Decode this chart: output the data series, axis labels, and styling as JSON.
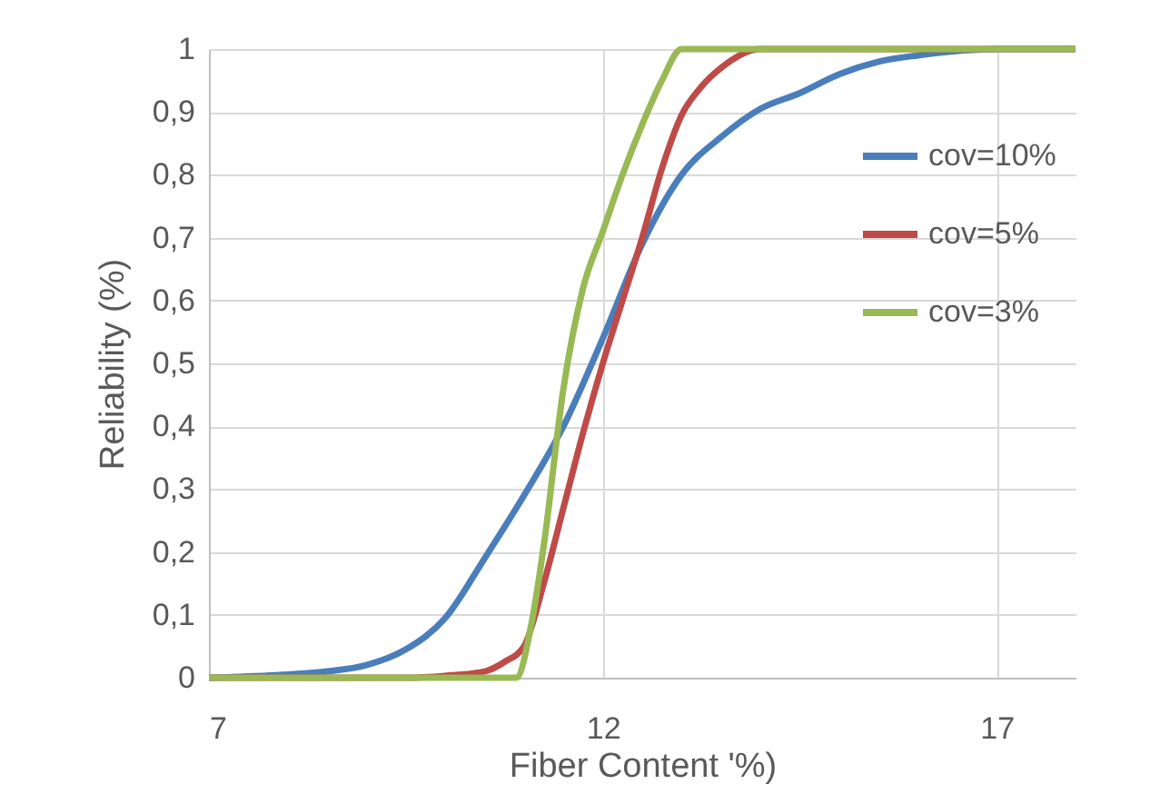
{
  "chart_data": {
    "type": "line",
    "xlabel": "Fiber Content '%)",
    "ylabel": "Reliability (%)",
    "xlim": [
      7,
      18
    ],
    "xticks": [
      7,
      12,
      17
    ],
    "ylim": [
      0,
      1
    ],
    "yticks": [
      0,
      {
        "value": 0.1,
        "label": "0,1"
      },
      {
        "value": 0.2,
        "label": "0,2"
      },
      {
        "value": 0.3,
        "label": "0,3"
      },
      {
        "value": 0.4,
        "label": "0,4"
      },
      {
        "value": 0.5,
        "label": "0,5"
      },
      {
        "value": 0.6,
        "label": "0,6"
      },
      {
        "value": 0.7,
        "label": "0,7"
      },
      {
        "value": 0.8,
        "label": "0,8"
      },
      {
        "value": 0.9,
        "label": "0,9"
      },
      1
    ],
    "grid": true,
    "legend": "top right",
    "series": [
      {
        "name": "cov=10%",
        "color": "#4a7ebb",
        "x": [
          7,
          8,
          8.5,
          9,
          9.5,
          10,
          10.5,
          11,
          11.5,
          12,
          12.5,
          13,
          13.5,
          14,
          14.5,
          15,
          15.5,
          16,
          17,
          18
        ],
        "values": [
          0,
          0.005,
          0.01,
          0.02,
          0.045,
          0.095,
          0.19,
          0.29,
          0.4,
          0.54,
          0.69,
          0.8,
          0.86,
          0.905,
          0.93,
          0.96,
          0.98,
          0.99,
          1,
          1
        ]
      },
      {
        "name": "cov=5%",
        "color": "#be4b48",
        "x": [
          7,
          9,
          9.5,
          10,
          10.5,
          10.75,
          11,
          11.25,
          11.5,
          11.75,
          12,
          12.25,
          12.5,
          12.75,
          13,
          13.25,
          13.5,
          14,
          18
        ],
        "values": [
          0,
          0,
          0,
          0.003,
          0.01,
          0.025,
          0.05,
          0.15,
          0.27,
          0.39,
          0.5,
          0.6,
          0.7,
          0.81,
          0.895,
          0.94,
          0.97,
          1,
          1
        ]
      },
      {
        "name": "cov=3%",
        "color": "#98b954",
        "x": [
          7,
          9,
          10,
          10.9,
          11.1,
          11.25,
          11.5,
          11.75,
          12,
          12.25,
          12.5,
          12.75,
          13,
          18
        ],
        "values": [
          0,
          0,
          0,
          0,
          0.09,
          0.21,
          0.46,
          0.62,
          0.71,
          0.8,
          0.88,
          0.95,
          1,
          1
        ]
      }
    ]
  }
}
